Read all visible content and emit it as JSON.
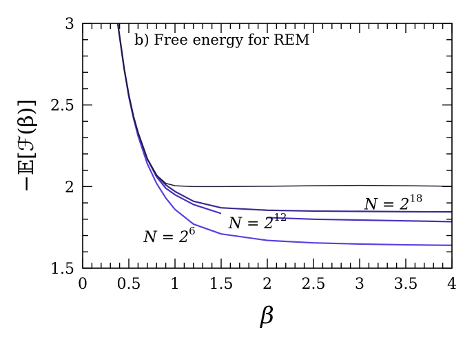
{
  "chart_data": {
    "type": "line",
    "title": "b) Free energy for REM",
    "xlabel": "β",
    "ylabel": "−𝔼[ℱ(β)]",
    "xlim": [
      0,
      4
    ],
    "ylim": [
      1.5,
      3
    ],
    "xticks": [
      "0",
      "0.5",
      "1",
      "1.5",
      "2",
      "2.5",
      "3",
      "3.5",
      "4"
    ],
    "yticks": [
      "1.5",
      "2",
      "2.5",
      "3"
    ],
    "grid": false,
    "legend": "none",
    "series": [
      {
        "color": "#5b3fe0",
        "label_base": "N = 2",
        "label_exp": "6",
        "x": [
          0.38,
          0.45,
          0.5,
          0.55,
          0.6,
          0.7,
          0.8,
          0.9,
          1.0,
          1.2,
          1.5,
          2.0,
          2.5,
          3.0,
          3.5,
          4.0
        ],
        "y": [
          3.0,
          2.72,
          2.55,
          2.42,
          2.31,
          2.14,
          2.02,
          1.93,
          1.86,
          1.77,
          1.71,
          1.67,
          1.655,
          1.648,
          1.643,
          1.64
        ]
      },
      {
        "color": "#4a30c0",
        "label_base": "N = 2",
        "label_exp": "12",
        "x": [
          0.38,
          0.45,
          0.5,
          0.55,
          0.6,
          0.7,
          0.8,
          0.9,
          1.0,
          1.2,
          1.5
        ],
        "y": [
          3.0,
          2.72,
          2.56,
          2.43,
          2.33,
          2.17,
          2.06,
          1.99,
          1.95,
          1.89,
          1.835
        ]
      },
      {
        "color": "#4a30c0",
        "label_base": "N = 2",
        "label_exp": "12",
        "x": [
          2.0,
          2.5,
          3.0,
          3.5,
          4.0
        ],
        "y": [
          1.81,
          1.8,
          1.795,
          1.79,
          1.785
        ]
      },
      {
        "color": "#3a2a90",
        "label_base": "N = 2",
        "label_exp": "18",
        "x": [
          0.38,
          0.45,
          0.5,
          0.55,
          0.6,
          0.7,
          0.8,
          0.9,
          1.0,
          1.2,
          1.5,
          2.0,
          2.5,
          3.0,
          3.5,
          4.0
        ],
        "y": [
          3.0,
          2.72,
          2.56,
          2.43,
          2.33,
          2.17,
          2.07,
          2.01,
          1.97,
          1.91,
          1.87,
          1.855,
          1.85,
          1.848,
          1.846,
          1.845
        ]
      },
      {
        "color": "#1e1b33",
        "x": [
          0.38,
          0.45,
          0.5,
          0.55,
          0.6,
          0.7,
          0.8,
          0.9,
          1.0,
          1.2,
          1.5,
          2.0,
          2.5,
          3.0,
          3.5,
          4.0
        ],
        "y": [
          3.0,
          2.72,
          2.56,
          2.43,
          2.33,
          2.17,
          2.07,
          2.02,
          2.005,
          2.0,
          2.0,
          2.002,
          2.005,
          2.007,
          2.005,
          2.002
        ]
      }
    ],
    "annotations": [
      {
        "base": "N = 2",
        "exp": "6",
        "x": 0.66,
        "y": 1.66
      },
      {
        "base": "N = 2",
        "exp": "12",
        "x": 1.58,
        "y": 1.745
      },
      {
        "base": "N = 2",
        "exp": "18",
        "x": 3.05,
        "y": 1.86
      }
    ]
  }
}
